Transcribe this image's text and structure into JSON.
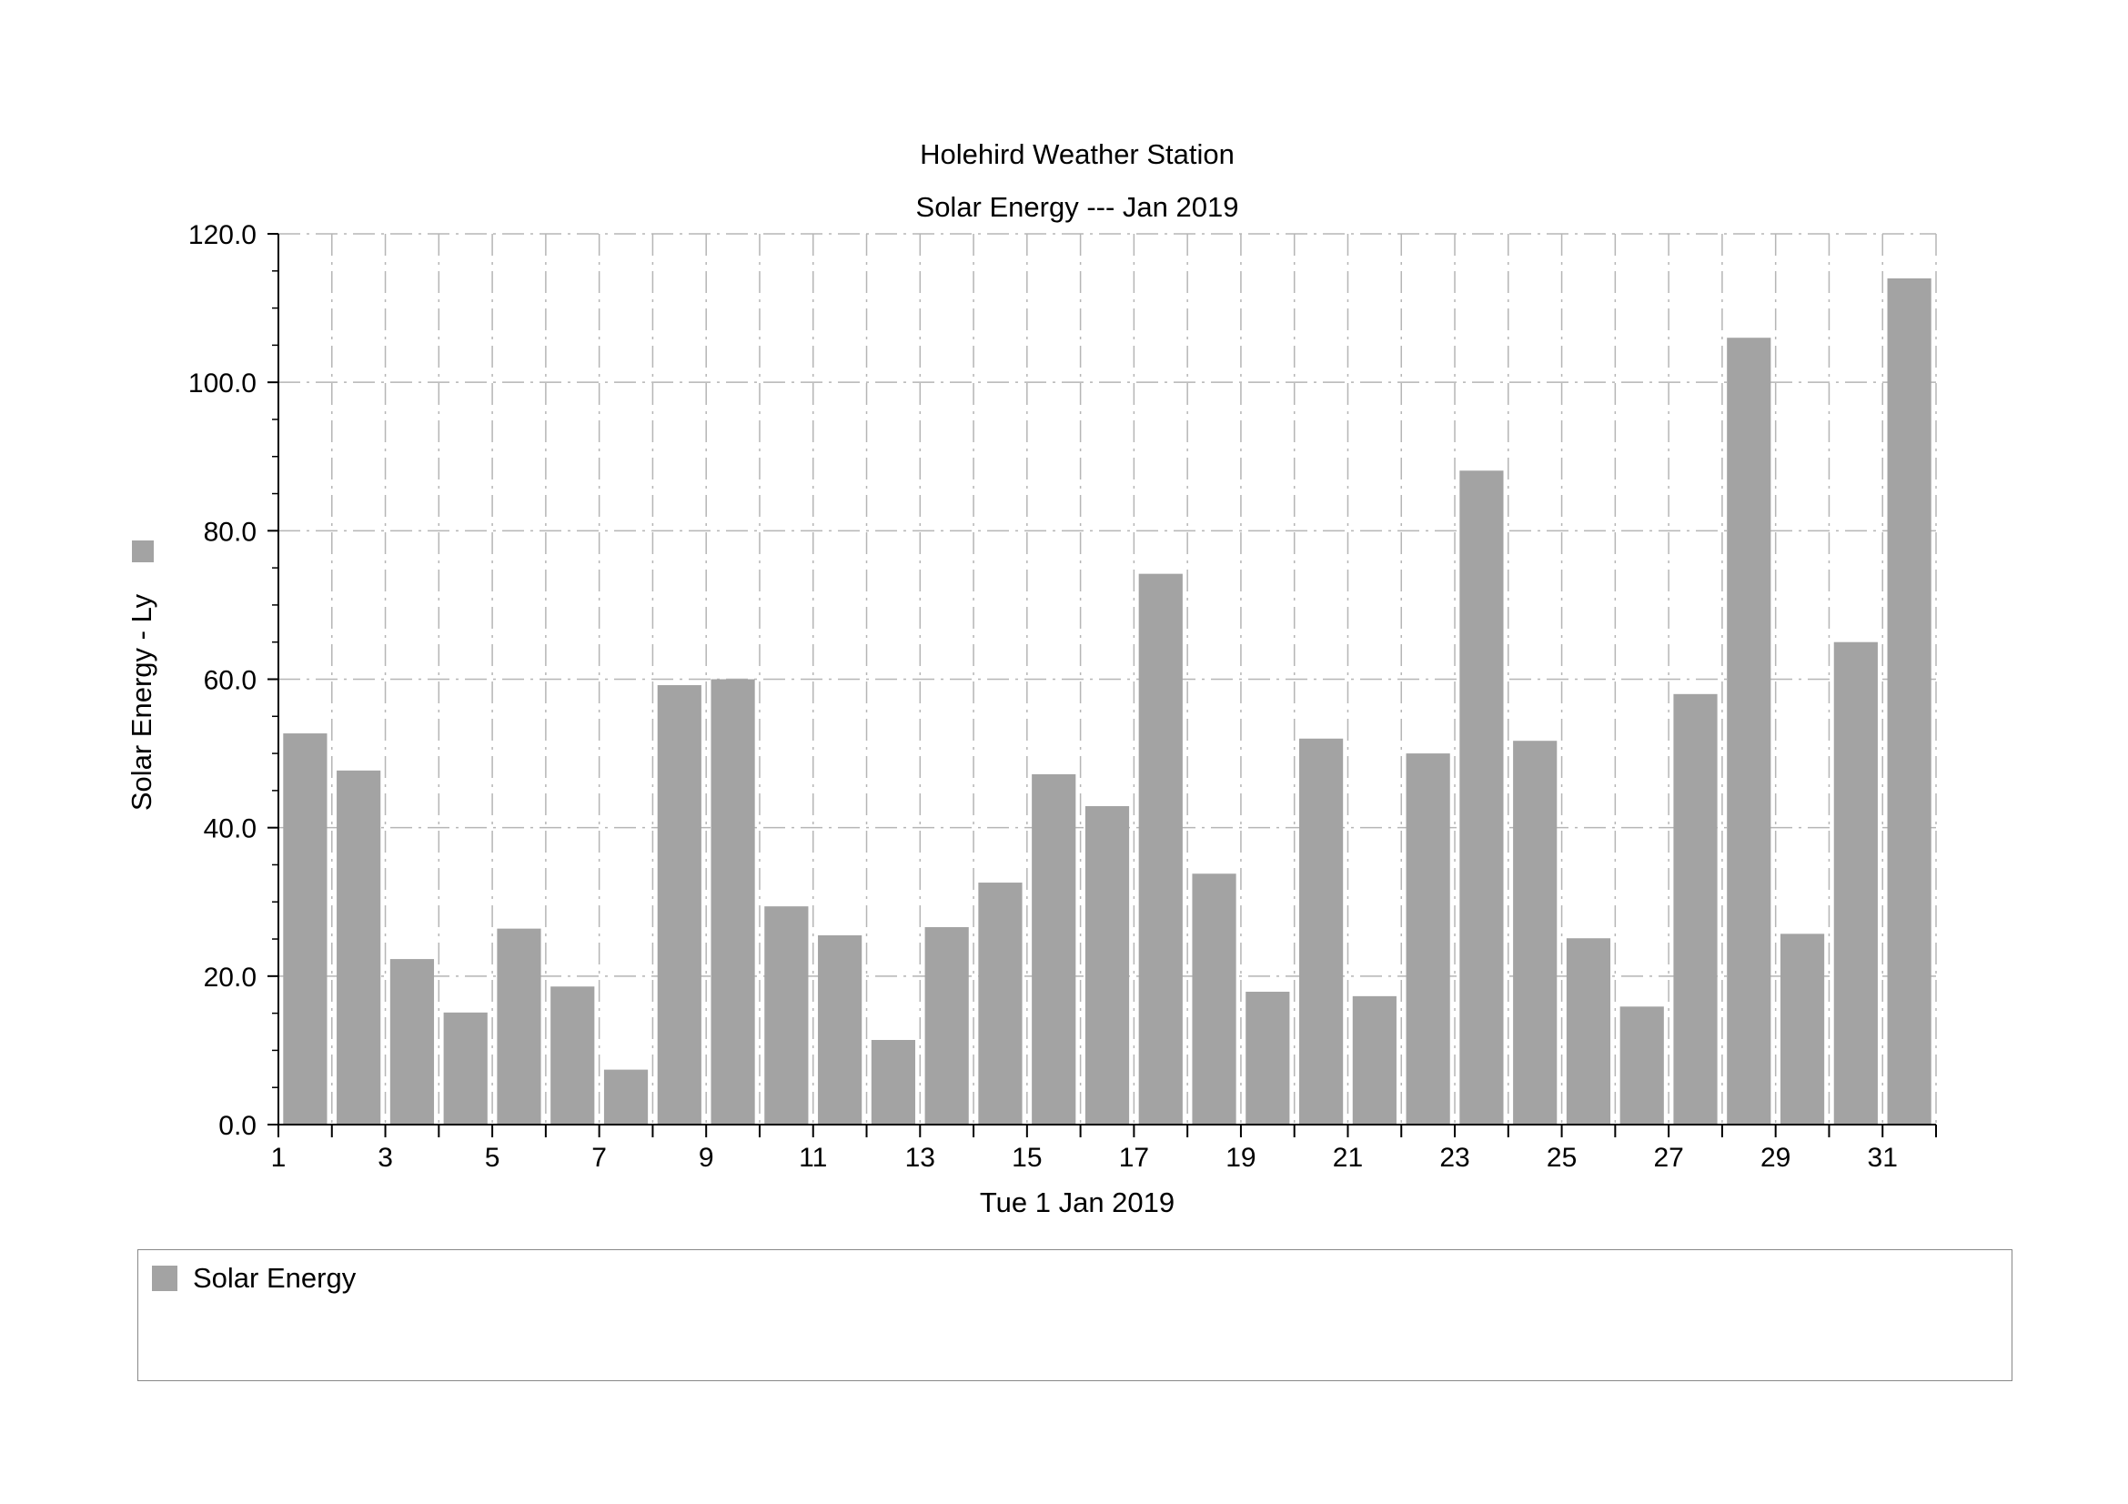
{
  "chart_data": {
    "type": "bar",
    "title": "Holehird Weather Station",
    "subtitle": "Solar Energy --- Jan 2019",
    "xlabel": "Tue 1 Jan 2019",
    "ylabel": "Solar Energy - Ly",
    "ylim": [
      0,
      120
    ],
    "y_ticks": [
      "0.0",
      "20.0",
      "40.0",
      "60.0",
      "80.0",
      "100.0",
      "120.0"
    ],
    "x_tick_labels": [
      "1",
      "3",
      "5",
      "7",
      "9",
      "11",
      "13",
      "15",
      "17",
      "19",
      "21",
      "23",
      "25",
      "27",
      "29",
      "31"
    ],
    "categories": [
      "1",
      "2",
      "3",
      "4",
      "5",
      "6",
      "7",
      "8",
      "9",
      "10",
      "11",
      "12",
      "13",
      "14",
      "15",
      "16",
      "17",
      "18",
      "19",
      "20",
      "21",
      "22",
      "23",
      "24",
      "25",
      "26",
      "27",
      "28",
      "29",
      "30",
      "31"
    ],
    "series": [
      {
        "name": "Solar Energy",
        "color": "#a3a3a3",
        "values": [
          52.7,
          47.7,
          22.3,
          15.1,
          26.4,
          18.6,
          7.4,
          59.2,
          60.0,
          29.4,
          25.5,
          11.4,
          26.6,
          32.6,
          47.2,
          42.9,
          74.2,
          33.8,
          17.9,
          52.0,
          17.3,
          50.0,
          88.1,
          51.7,
          25.1,
          15.9,
          58.0,
          106.0,
          25.7,
          65.0,
          114.0
        ]
      }
    ],
    "grid": true,
    "legend": "bottom"
  },
  "legend": {
    "label": "Solar Energy",
    "color": "#a3a3a3"
  }
}
